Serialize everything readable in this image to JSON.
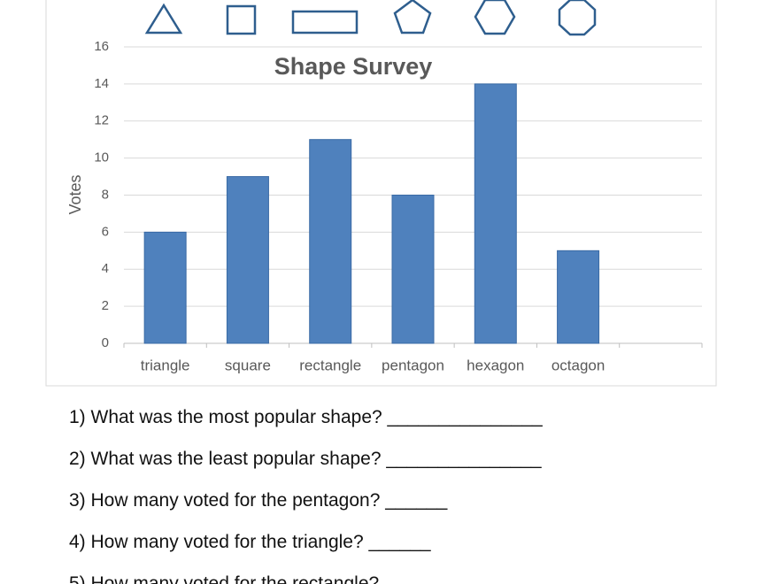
{
  "chart_data": {
    "type": "bar",
    "title": "Shape Survey",
    "y_label": "Votes",
    "categories": [
      "triangle",
      "square",
      "rectangle",
      "pentagon",
      "hexagon",
      "octagon",
      null
    ],
    "values": [
      6,
      9,
      11,
      8,
      14,
      5,
      null
    ],
    "color": "#4f81bd",
    "ylim": [
      0,
      16
    ],
    "yticks": [
      0,
      2,
      4,
      6,
      8,
      10,
      12,
      14,
      16
    ],
    "grid": true
  },
  "questions": [
    "1) What was the most popular shape? _______________",
    "2) What was the least popular shape? _______________",
    "3) How many voted for the pentagon? ______",
    "4) How many voted for the triangle? ______",
    "5) How many voted for the rectangle?"
  ]
}
